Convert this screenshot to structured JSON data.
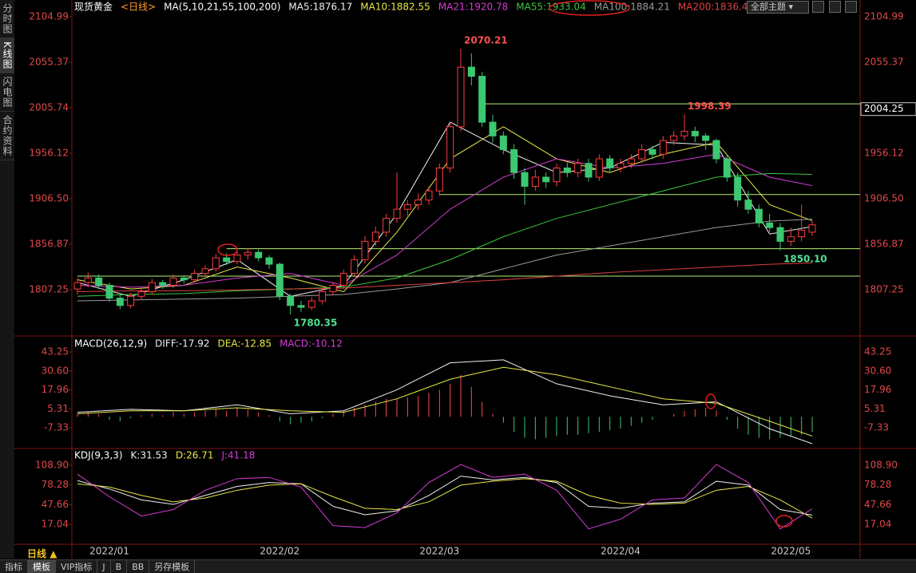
{
  "sidebar": [
    "分时图",
    "K线图",
    "闪电图",
    "合约资料"
  ],
  "toolbar": {
    "theme": "全部主题"
  },
  "period": "日线",
  "tabs": [
    "指标",
    "模板",
    "VIP指标",
    "J",
    "B",
    "BB",
    "另存模板"
  ],
  "chart_data": [
    {
      "type": "candlestick",
      "title": "现货黄金",
      "period_label": "<日线>",
      "indicator": "MA(5,10,21,55,100,200)",
      "up_color": "#ff3b3b",
      "down_color": "#3cc870",
      "xlim": [
        0,
        69
      ],
      "ylim": [
        1757.6,
        2116.3
      ],
      "yticks": [
        2104.99,
        2055.37,
        2005.74,
        1956.12,
        {
          "value": 1906.5,
          "label": "1906.50"
        },
        1856.87,
        1807.25
      ],
      "x_labels": [
        {
          "index": 3,
          "label": "2022/01"
        },
        {
          "index": 19,
          "label": "2022/02"
        },
        {
          "index": 34,
          "label": "2022/03"
        },
        {
          "index": 51,
          "label": "2022/04"
        },
        {
          "index": 67,
          "label": "2022/05"
        }
      ],
      "candles": [
        [
          1808,
          1820,
          1802,
          1815
        ],
        [
          1815,
          1826,
          1810,
          1820
        ],
        [
          1820,
          1824,
          1808,
          1812
        ],
        [
          1812,
          1815,
          1794,
          1798
        ],
        [
          1798,
          1802,
          1786,
          1790
        ],
        [
          1790,
          1804,
          1787,
          1800
        ],
        [
          1800,
          1810,
          1796,
          1805
        ],
        [
          1805,
          1819,
          1802,
          1815
        ],
        [
          1815,
          1818,
          1808,
          1812
        ],
        [
          1812,
          1824,
          1809,
          1820
        ],
        [
          1820,
          1823,
          1814,
          1818
        ],
        [
          1818,
          1829,
          1815,
          1825
        ],
        [
          1825,
          1834,
          1821,
          1830
        ],
        [
          1830,
          1846,
          1827,
          1842
        ],
        [
          1842,
          1847,
          1834,
          1838
        ],
        [
          1838,
          1849,
          1835,
          1845
        ],
        [
          1845,
          1853,
          1840,
          1848
        ],
        [
          1848,
          1851,
          1838,
          1842
        ],
        [
          1842,
          1845,
          1830,
          1835
        ],
        [
          1835,
          1837,
          1796,
          1800
        ],
        [
          1800,
          1803,
          1780.35,
          1790
        ],
        [
          1790,
          1795,
          1783,
          1788
        ],
        [
          1788,
          1799,
          1785,
          1795
        ],
        [
          1795,
          1809,
          1791,
          1805
        ],
        [
          1805,
          1816,
          1801,
          1812
        ],
        [
          1812,
          1829,
          1808,
          1825
        ],
        [
          1825,
          1845,
          1821,
          1840
        ],
        [
          1840,
          1866,
          1836,
          1860
        ],
        [
          1860,
          1876,
          1855,
          1870
        ],
        [
          1870,
          1890,
          1865,
          1885
        ],
        [
          1885,
          1935,
          1880,
          1895
        ],
        [
          1895,
          1905,
          1888,
          1900
        ],
        [
          1900,
          1912,
          1894,
          1905
        ],
        [
          1905,
          1920,
          1900,
          1915
        ],
        [
          1915,
          1945,
          1910,
          1940
        ],
        [
          1940,
          1990,
          1935,
          1985
        ],
        [
          1985,
          2070.21,
          1980,
          2050
        ],
        [
          2050,
          2065,
          2030,
          2040
        ],
        [
          2040,
          2045,
          1985,
          1990
        ],
        [
          1990,
          1998,
          1968,
          1975
        ],
        [
          1975,
          1980,
          1955,
          1960
        ],
        [
          1960,
          1966,
          1928,
          1935
        ],
        [
          1935,
          1940,
          1900,
          1920
        ],
        [
          1920,
          1938,
          1915,
          1930
        ],
        [
          1930,
          1935,
          1918,
          1925
        ],
        [
          1925,
          1945,
          1920,
          1940
        ],
        [
          1940,
          1946,
          1930,
          1935
        ],
        [
          1935,
          1950,
          1930,
          1945
        ],
        [
          1945,
          1950,
          1925,
          1930
        ],
        [
          1930,
          1955,
          1926,
          1950
        ],
        [
          1950,
          1954,
          1935,
          1940
        ],
        [
          1940,
          1950,
          1935,
          1945
        ],
        [
          1945,
          1955,
          1940,
          1950
        ],
        [
          1950,
          1966,
          1946,
          1960
        ],
        [
          1960,
          1964,
          1950,
          1955
        ],
        [
          1955,
          1975,
          1950,
          1970
        ],
        [
          1970,
          1980,
          1965,
          1975
        ],
        [
          1975,
          1998.39,
          1970,
          1980
        ],
        [
          1980,
          1985,
          1968,
          1975
        ],
        [
          1975,
          1978,
          1960,
          1970
        ],
        [
          1970,
          1972,
          1945,
          1950
        ],
        [
          1950,
          1955,
          1925,
          1930
        ],
        [
          1930,
          1935,
          1898,
          1905
        ],
        [
          1905,
          1915,
          1890,
          1895
        ],
        [
          1895,
          1900,
          1875,
          1880
        ],
        [
          1880,
          1890,
          1870,
          1875
        ],
        [
          1875,
          1880,
          1850.1,
          1860
        ],
        [
          1860,
          1875,
          1855,
          1865
        ],
        [
          1865,
          1900,
          1860,
          1872
        ],
        [
          1870,
          1882,
          1866,
          1878
        ]
      ],
      "series": [
        {
          "name": "MA5:1876.17",
          "color": "#f0f0f0",
          "x": [
            0,
            5,
            10,
            15,
            20,
            25,
            30,
            35,
            40,
            45,
            50,
            55,
            60,
            65,
            69
          ],
          "values": [
            1815,
            1800,
            1818,
            1840,
            1800,
            1812,
            1890,
            1990,
            1960,
            1935,
            1940,
            1968,
            1965,
            1868,
            1876.17
          ]
        },
        {
          "name": "MA10:1882.55",
          "color": "#e8e84a",
          "x": [
            0,
            5,
            10,
            15,
            20,
            25,
            30,
            35,
            40,
            45,
            50,
            55,
            60,
            65,
            69
          ],
          "values": [
            1818,
            1808,
            1812,
            1832,
            1820,
            1805,
            1870,
            1950,
            1985,
            1950,
            1935,
            1955,
            1968,
            1900,
            1882.55
          ]
        },
        {
          "name": "MA21:1920.78",
          "color": "#d63cd6",
          "x": [
            0,
            5,
            10,
            15,
            20,
            25,
            30,
            35,
            40,
            45,
            50,
            55,
            60,
            65,
            69
          ],
          "values": [
            1812,
            1810,
            1812,
            1820,
            1825,
            1812,
            1845,
            1895,
            1930,
            1950,
            1940,
            1945,
            1955,
            1930,
            1920.78
          ]
        },
        {
          "name": "MA55:1933.04",
          "color": "#3cc83c",
          "x": [
            0,
            5,
            10,
            15,
            20,
            25,
            30,
            35,
            40,
            45,
            50,
            55,
            60,
            65,
            69
          ],
          "values": [
            1800,
            1802,
            1803,
            1806,
            1808,
            1810,
            1820,
            1840,
            1865,
            1885,
            1900,
            1915,
            1930,
            1934,
            1933.04
          ]
        },
        {
          "name": "MA100:1884.21",
          "color": "#9a9a9a",
          "x": [
            0,
            5,
            10,
            15,
            20,
            25,
            30,
            35,
            40,
            45,
            50,
            55,
            60,
            65,
            69
          ],
          "values": [
            1795,
            1796,
            1797,
            1798,
            1800,
            1802,
            1808,
            1815,
            1830,
            1845,
            1855,
            1865,
            1875,
            1882,
            1884.21
          ]
        },
        {
          "name": "MA200:1836.4",
          "color": "#e04040",
          "x": [
            0,
            5,
            10,
            15,
            20,
            25,
            30,
            35,
            40,
            45,
            50,
            55,
            60,
            65,
            69
          ],
          "values": [
            1805,
            1806,
            1806,
            1807,
            1808,
            1809,
            1812,
            1815,
            1818,
            1822,
            1826,
            1829,
            1832,
            1835,
            1836.4
          ]
        }
      ],
      "hlines": [
        {
          "value": 2010,
          "from": 38
        },
        {
          "value": 1911,
          "from": 34
        },
        {
          "value": 1852,
          "from": 14
        },
        {
          "value": 1822,
          "from": 0
        }
      ],
      "hline_color": "#b8f07a",
      "annotations": [
        {
          "index": 36,
          "value": 2070.21,
          "placement": "above",
          "color": "#ff5050"
        },
        {
          "index": 57,
          "value": 1998.39,
          "placement": "above",
          "color": "#ff5050"
        },
        {
          "index": 66,
          "value": 1850.1,
          "label": "1850.10",
          "placement": "below",
          "color": "#50e090"
        },
        {
          "index": 20,
          "value": 1780.35,
          "placement": "below",
          "color": "#50e090"
        }
      ],
      "cursor_price": 2004.25
    },
    {
      "type": "macd",
      "title": "MACD(26,12,9)",
      "xlim": [
        0,
        69
      ],
      "ylim": [
        -20.1,
        51.77
      ],
      "yticks": [
        43.25,
        {
          "value": 30.6,
          "label": "30.60"
        },
        17.96,
        5.31,
        -7.33
      ],
      "series": [
        {
          "name": "DIFF:-17.92",
          "color": "#f0f0f0",
          "x": [
            0,
            5,
            10,
            15,
            20,
            25,
            30,
            35,
            40,
            45,
            50,
            55,
            60,
            65,
            69
          ],
          "values": [
            3,
            5,
            4,
            8,
            2,
            4,
            18,
            36,
            38,
            22,
            14,
            8,
            10,
            -8,
            -17.92
          ]
        },
        {
          "name": "DEA:-12.85",
          "color": "#e8e84a",
          "x": [
            0,
            5,
            10,
            15,
            20,
            25,
            30,
            35,
            40,
            45,
            50,
            55,
            60,
            65,
            69
          ],
          "values": [
            2,
            4,
            4,
            6,
            4,
            3,
            12,
            25,
            33,
            28,
            20,
            12,
            9,
            -3,
            -12.85
          ]
        }
      ],
      "histogram": {
        "name": "MACD:-10.12",
        "color": "#d63cd6",
        "up_color": "#ff4a4a",
        "down_color": "#3cc870",
        "values": [
          2,
          3,
          2,
          -2,
          -3,
          -1,
          1,
          2,
          1,
          3,
          2,
          3,
          4,
          5,
          4,
          6,
          5,
          3,
          1,
          -3,
          -5,
          -4,
          -3,
          -1,
          2,
          4,
          6,
          8,
          10,
          12,
          12,
          13,
          14,
          16,
          18,
          22,
          28,
          20,
          10,
          2,
          -4,
          -10,
          -14,
          -15,
          -14,
          -13,
          -12,
          -12,
          -11,
          -10,
          -9,
          -8,
          -6,
          -4,
          -2,
          0,
          2,
          4,
          5,
          6,
          4,
          -2,
          -8,
          -12,
          -14,
          -15,
          -14,
          -13,
          -12,
          -10.12
        ]
      }
    },
    {
      "type": "kdj",
      "title": "KDJ(9,3,3)",
      "xlim": [
        0,
        69
      ],
      "ylim": [
        -11.5,
        131.2
      ],
      "yticks": [
        {
          "value": 108.9,
          "label": "108.90"
        },
        78.28,
        47.66,
        17.04
      ],
      "series": [
        {
          "name": "K:31.53",
          "color": "#f0f0f0",
          "x": [
            0,
            3,
            6,
            9,
            12,
            15,
            18,
            21,
            24,
            27,
            30,
            33,
            36,
            39,
            42,
            45,
            48,
            51,
            54,
            57,
            60,
            63,
            66,
            69
          ],
          "values": [
            85,
            72,
            55,
            48,
            62,
            76,
            82,
            80,
            45,
            32,
            38,
            62,
            92,
            86,
            90,
            82,
            45,
            42,
            50,
            52,
            84,
            78,
            40,
            31.53
          ]
        },
        {
          "name": "D:26.71",
          "color": "#e8e84a",
          "x": [
            0,
            3,
            6,
            9,
            12,
            15,
            18,
            21,
            24,
            27,
            30,
            33,
            36,
            39,
            42,
            45,
            48,
            51,
            54,
            57,
            60,
            63,
            66,
            69
          ],
          "values": [
            80,
            75,
            62,
            52,
            58,
            70,
            78,
            80,
            60,
            42,
            40,
            52,
            78,
            84,
            88,
            84,
            62,
            50,
            48,
            50,
            70,
            76,
            55,
            26.71
          ]
        },
        {
          "name": "J:41.18",
          "color": "#d63cd6",
          "x": [
            0,
            3,
            6,
            9,
            12,
            15,
            18,
            21,
            24,
            27,
            30,
            33,
            36,
            39,
            42,
            45,
            48,
            51,
            54,
            57,
            60,
            63,
            66,
            69
          ],
          "values": [
            95,
            60,
            30,
            40,
            70,
            88,
            90,
            75,
            15,
            12,
            35,
            82,
            110,
            90,
            95,
            70,
            10,
            25,
            55,
            58,
            110,
            82,
            10,
            41.18
          ]
        }
      ]
    }
  ]
}
